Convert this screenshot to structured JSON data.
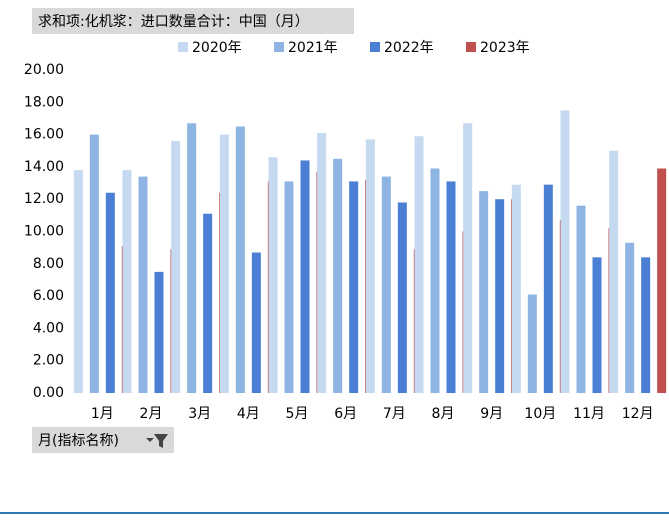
{
  "chart_data": {
    "type": "bar",
    "title": "求和项:化机浆：进口数量合计：中国（月）",
    "field_button": "月(指标名称)",
    "categories": [
      "1月",
      "2月",
      "3月",
      "4月",
      "5月",
      "6月",
      "7月",
      "8月",
      "9月",
      "10月",
      "11月",
      "12月"
    ],
    "series": [
      {
        "name": "2020年",
        "color": "#c5d9f1",
        "values": [
          13.8,
          13.8,
          15.6,
          16.0,
          14.6,
          16.1,
          15.7,
          15.9,
          16.7,
          12.9,
          17.5,
          15.0
        ]
      },
      {
        "name": "2021年",
        "color": "#8db4e2",
        "values": [
          16.0,
          13.4,
          16.7,
          16.5,
          13.1,
          14.5,
          13.4,
          13.9,
          12.5,
          6.1,
          11.6,
          9.3
        ]
      },
      {
        "name": "2022年",
        "color": "#4a7fd4",
        "values": [
          12.4,
          7.5,
          11.1,
          8.7,
          14.4,
          13.1,
          11.8,
          13.1,
          12.0,
          12.9,
          8.4,
          8.4
        ]
      },
      {
        "name": "2023年",
        "color": "#c0504d",
        "values": [
          9.1,
          8.9,
          12.4,
          13.1,
          13.7,
          13.2,
          8.9,
          10.0,
          12.0,
          10.7,
          10.2,
          13.9
        ]
      }
    ],
    "ylim": [
      0,
      20
    ],
    "yticks": [
      {
        "value": 0,
        "label": "0.00"
      },
      {
        "value": 2,
        "label": "2.00"
      },
      {
        "value": 4,
        "label": "4.00"
      },
      {
        "value": 6,
        "label": "6.00"
      },
      {
        "value": 8,
        "label": "8.00"
      },
      {
        "value": 10,
        "label": "10.00"
      },
      {
        "value": 12,
        "label": "12.00"
      },
      {
        "value": 14,
        "label": "14.00"
      },
      {
        "value": 16,
        "label": "16.00"
      },
      {
        "value": 18,
        "label": "18.00"
      },
      {
        "value": 20,
        "label": "20.00"
      }
    ],
    "legend": "top"
  }
}
